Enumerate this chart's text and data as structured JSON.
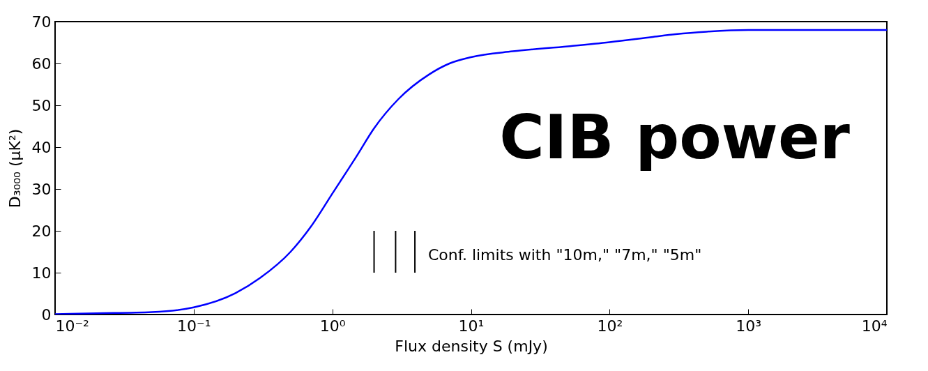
{
  "chart_data": {
    "type": "line",
    "xlabel": "Flux density S (mJy)",
    "ylabel": "D₃₀₀₀ (μK²)",
    "series": [
      {
        "color": "#0000ff",
        "x": [
          0.01,
          0.02,
          0.05,
          0.1,
          0.2,
          0.3,
          0.5,
          0.7,
          1,
          1.5,
          2,
          3,
          5,
          7,
          10,
          20,
          50,
          100,
          200,
          300,
          500,
          1000,
          10000
        ],
        "values": [
          0.1,
          0.3,
          0.6,
          1.7,
          5.1,
          8.7,
          15,
          21,
          28.9,
          37.9,
          44.5,
          51.5,
          57.4,
          60,
          61.5,
          62.9,
          64.1,
          65.1,
          66.3,
          67,
          67.6,
          68,
          68
        ]
      },
      {
        "color": "#000000",
        "x": [
          2,
          2
        ],
        "values": [
          10,
          20
        ]
      },
      {
        "color": "#000000",
        "x": [
          2.86,
          2.86
        ],
        "values": [
          10,
          20
        ]
      },
      {
        "color": "#000000",
        "x": [
          3.94,
          3.94
        ],
        "values": [
          10,
          20
        ]
      }
    ],
    "log": "x",
    "xlim": [
      0.01,
      10000
    ],
    "xticks": [
      {
        "value": 0.01,
        "label": "10⁻²"
      },
      {
        "value": 0.1,
        "label": "10⁻¹"
      },
      {
        "value": 1,
        "label": "10⁰"
      },
      {
        "value": 10,
        "label": "10¹"
      },
      {
        "value": 100,
        "label": "10²"
      },
      {
        "value": 1000,
        "label": "10³"
      },
      {
        "value": 10000,
        "label": "10⁴"
      }
    ],
    "ylim": [
      0,
      70
    ],
    "yticks": [
      0,
      10,
      20,
      30,
      40,
      50,
      60,
      70
    ],
    "annotations": [
      "CIB power",
      "Conf. limits with \"10m,\" \"7m,\" \"5m\""
    ],
    "grid": false
  }
}
